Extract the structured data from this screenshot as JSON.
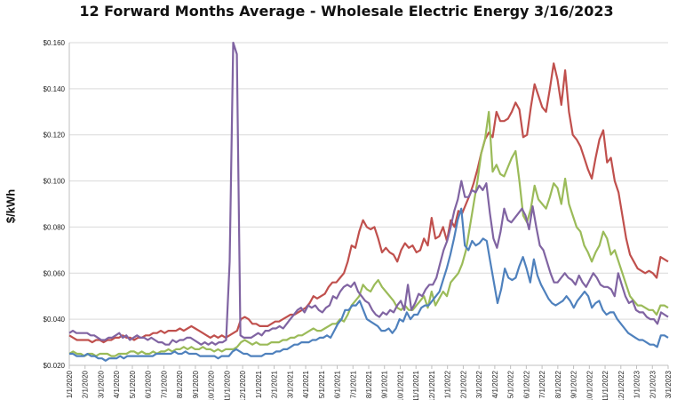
{
  "chart_data": {
    "type": "line",
    "title": "12 Forward Months Average - Wholesale Electric Energy 3/16/2023",
    "ylabel": "$/kWh",
    "xlabel": "",
    "ylim": [
      0.02,
      0.16
    ],
    "y_ticks": [
      "$0.020",
      "$0.040",
      "$0.060",
      "$0.080",
      "$0.100",
      "$0.120",
      "$0.140",
      "$0.160"
    ],
    "x_ticks": [
      "1/1/2020",
      "2/1/2020",
      "3/1/2020",
      "4/1/2020",
      "5/1/2020",
      "6/1/2020",
      "7/1/2020",
      "8/1/2020",
      "9/1/2020",
      "10/1/2020",
      "11/1/2020",
      "12/1/2020",
      "1/1/2021",
      "2/1/2021",
      "3/1/2021",
      "4/1/2021",
      "5/1/2021",
      "6/1/2021",
      "7/1/2021",
      "8/1/2021",
      "9/1/2021",
      "10/1/2021",
      "11/1/2021",
      "12/1/2021",
      "1/1/2022",
      "2/1/2022",
      "3/1/2022",
      "4/1/2022",
      "5/1/2022",
      "6/1/2022",
      "7/1/2022",
      "8/1/2022",
      "9/1/2022",
      "10/1/2022",
      "11/1/2022",
      "12/1/2022",
      "1/1/2023",
      "2/1/2023",
      "3/1/2023"
    ],
    "grid": true,
    "legend": "none",
    "series": [
      {
        "color": "#c0504d",
        "values": [
          0.033,
          0.032,
          0.031,
          0.031,
          0.031,
          0.031,
          0.03,
          0.031,
          0.031,
          0.03,
          0.031,
          0.031,
          0.032,
          0.032,
          0.033,
          0.032,
          0.032,
          0.031,
          0.032,
          0.032,
          0.033,
          0.033,
          0.034,
          0.034,
          0.035,
          0.034,
          0.035,
          0.035,
          0.035,
          0.036,
          0.035,
          0.036,
          0.037,
          0.036,
          0.035,
          0.034,
          0.033,
          0.032,
          0.033,
          0.032,
          0.033,
          0.032,
          0.033,
          0.034,
          0.035,
          0.04,
          0.041,
          0.04,
          0.038,
          0.038,
          0.037,
          0.037,
          0.037,
          0.038,
          0.039,
          0.039,
          0.04,
          0.041,
          0.042,
          0.042,
          0.043,
          0.044,
          0.045,
          0.047,
          0.05,
          0.049,
          0.05,
          0.051,
          0.054,
          0.056,
          0.056,
          0.058,
          0.06,
          0.065,
          0.072,
          0.071,
          0.078,
          0.083,
          0.08,
          0.079,
          0.08,
          0.075,
          0.069,
          0.071,
          0.069,
          0.068,
          0.065,
          0.07,
          0.073,
          0.071,
          0.072,
          0.069,
          0.07,
          0.075,
          0.072,
          0.084,
          0.075,
          0.076,
          0.08,
          0.074,
          0.083,
          0.08,
          0.087,
          0.086,
          0.09,
          0.094,
          0.099,
          0.105,
          0.112,
          0.118,
          0.121,
          0.119,
          0.13,
          0.126,
          0.126,
          0.127,
          0.13,
          0.134,
          0.131,
          0.119,
          0.12,
          0.132,
          0.142,
          0.137,
          0.132,
          0.13,
          0.14,
          0.151,
          0.144,
          0.133,
          0.148,
          0.13,
          0.12,
          0.118,
          0.115,
          0.11,
          0.105,
          0.101,
          0.11,
          0.118,
          0.122,
          0.108,
          0.11,
          0.1,
          0.095,
          0.085,
          0.075,
          0.068,
          0.065,
          0.062,
          0.061,
          0.06,
          0.061,
          0.06,
          0.058,
          0.067,
          0.066,
          0.065
        ]
      },
      {
        "color": "#9bbb59",
        "values": [
          0.025,
          0.026,
          0.025,
          0.025,
          0.024,
          0.025,
          0.025,
          0.024,
          0.025,
          0.025,
          0.025,
          0.024,
          0.024,
          0.025,
          0.025,
          0.025,
          0.026,
          0.026,
          0.025,
          0.026,
          0.025,
          0.025,
          0.026,
          0.025,
          0.026,
          0.026,
          0.027,
          0.026,
          0.027,
          0.027,
          0.028,
          0.027,
          0.028,
          0.027,
          0.027,
          0.028,
          0.027,
          0.027,
          0.026,
          0.027,
          0.026,
          0.027,
          0.027,
          0.027,
          0.028,
          0.03,
          0.031,
          0.03,
          0.029,
          0.03,
          0.029,
          0.029,
          0.029,
          0.03,
          0.03,
          0.03,
          0.031,
          0.031,
          0.032,
          0.032,
          0.033,
          0.033,
          0.034,
          0.035,
          0.036,
          0.035,
          0.035,
          0.036,
          0.037,
          0.038,
          0.038,
          0.04,
          0.039,
          0.042,
          0.046,
          0.048,
          0.05,
          0.055,
          0.053,
          0.052,
          0.055,
          0.057,
          0.054,
          0.052,
          0.05,
          0.048,
          0.045,
          0.044,
          0.046,
          0.044,
          0.044,
          0.046,
          0.048,
          0.05,
          0.045,
          0.052,
          0.046,
          0.049,
          0.052,
          0.05,
          0.056,
          0.058,
          0.06,
          0.064,
          0.07,
          0.08,
          0.09,
          0.1,
          0.112,
          0.118,
          0.13,
          0.104,
          0.107,
          0.103,
          0.102,
          0.106,
          0.11,
          0.113,
          0.1,
          0.085,
          0.082,
          0.088,
          0.098,
          0.092,
          0.09,
          0.088,
          0.093,
          0.099,
          0.097,
          0.09,
          0.101,
          0.09,
          0.085,
          0.08,
          0.078,
          0.072,
          0.069,
          0.065,
          0.069,
          0.072,
          0.078,
          0.075,
          0.068,
          0.07,
          0.065,
          0.06,
          0.055,
          0.05,
          0.048,
          0.046,
          0.046,
          0.045,
          0.044,
          0.044,
          0.042,
          0.046,
          0.046,
          0.045
        ]
      },
      {
        "color": "#8064a2",
        "values": [
          0.034,
          0.035,
          0.034,
          0.034,
          0.034,
          0.034,
          0.033,
          0.033,
          0.032,
          0.031,
          0.031,
          0.032,
          0.032,
          0.033,
          0.034,
          0.032,
          0.033,
          0.031,
          0.032,
          0.033,
          0.032,
          0.032,
          0.031,
          0.032,
          0.031,
          0.03,
          0.03,
          0.029,
          0.029,
          0.031,
          0.03,
          0.031,
          0.031,
          0.032,
          0.032,
          0.031,
          0.03,
          0.029,
          0.03,
          0.029,
          0.03,
          0.029,
          0.03,
          0.03,
          0.031,
          0.065,
          0.16,
          0.155,
          0.033,
          0.032,
          0.032,
          0.032,
          0.033,
          0.034,
          0.033,
          0.035,
          0.035,
          0.036,
          0.036,
          0.037,
          0.036,
          0.038,
          0.04,
          0.042,
          0.044,
          0.045,
          0.043,
          0.046,
          0.045,
          0.046,
          0.044,
          0.043,
          0.045,
          0.046,
          0.05,
          0.049,
          0.052,
          0.054,
          0.055,
          0.054,
          0.056,
          0.052,
          0.05,
          0.048,
          0.047,
          0.044,
          0.042,
          0.041,
          0.043,
          0.042,
          0.044,
          0.043,
          0.046,
          0.048,
          0.044,
          0.055,
          0.044,
          0.047,
          0.051,
          0.05,
          0.053,
          0.055,
          0.055,
          0.058,
          0.064,
          0.07,
          0.074,
          0.08,
          0.087,
          0.092,
          0.1,
          0.093,
          0.093,
          0.096,
          0.095,
          0.098,
          0.096,
          0.099,
          0.086,
          0.075,
          0.071,
          0.078,
          0.088,
          0.083,
          0.082,
          0.084,
          0.086,
          0.088,
          0.085,
          0.079,
          0.089,
          0.08,
          0.072,
          0.07,
          0.065,
          0.06,
          0.056,
          0.056,
          0.058,
          0.06,
          0.058,
          0.057,
          0.055,
          0.059,
          0.056,
          0.054,
          0.057,
          0.06,
          0.058,
          0.055,
          0.054,
          0.054,
          0.053,
          0.05,
          0.06,
          0.055,
          0.05,
          0.047,
          0.048,
          0.044,
          0.043,
          0.043,
          0.041,
          0.04,
          0.04,
          0.038,
          0.043,
          0.042,
          0.041
        ]
      },
      {
        "color": "#4f81bd",
        "values": [
          0.025,
          0.025,
          0.024,
          0.024,
          0.024,
          0.025,
          0.024,
          0.024,
          0.023,
          0.023,
          0.022,
          0.023,
          0.023,
          0.023,
          0.024,
          0.023,
          0.024,
          0.024,
          0.024,
          0.024,
          0.024,
          0.024,
          0.024,
          0.024,
          0.025,
          0.025,
          0.025,
          0.025,
          0.025,
          0.026,
          0.025,
          0.025,
          0.026,
          0.025,
          0.025,
          0.025,
          0.024,
          0.024,
          0.024,
          0.024,
          0.024,
          0.023,
          0.024,
          0.024,
          0.024,
          0.026,
          0.027,
          0.026,
          0.025,
          0.025,
          0.024,
          0.024,
          0.024,
          0.024,
          0.025,
          0.025,
          0.025,
          0.026,
          0.026,
          0.027,
          0.027,
          0.028,
          0.029,
          0.029,
          0.03,
          0.03,
          0.03,
          0.031,
          0.031,
          0.032,
          0.032,
          0.033,
          0.032,
          0.035,
          0.038,
          0.04,
          0.044,
          0.044,
          0.046,
          0.046,
          0.048,
          0.044,
          0.04,
          0.039,
          0.038,
          0.037,
          0.035,
          0.035,
          0.036,
          0.034,
          0.036,
          0.04,
          0.039,
          0.043,
          0.04,
          0.042,
          0.042,
          0.045,
          0.046,
          0.046,
          0.048,
          0.05,
          0.052,
          0.057,
          0.062,
          0.068,
          0.075,
          0.083,
          0.088,
          0.072,
          0.07,
          0.074,
          0.072,
          0.073,
          0.075,
          0.074,
          0.065,
          0.056,
          0.047,
          0.053,
          0.062,
          0.058,
          0.057,
          0.058,
          0.063,
          0.067,
          0.062,
          0.056,
          0.066,
          0.059,
          0.055,
          0.052,
          0.049,
          0.047,
          0.046,
          0.047,
          0.048,
          0.05,
          0.048,
          0.045,
          0.048,
          0.05,
          0.052,
          0.05,
          0.045,
          0.047,
          0.048,
          0.044,
          0.042,
          0.043,
          0.043,
          0.04,
          0.038,
          0.036,
          0.034,
          0.033,
          0.032,
          0.031,
          0.031,
          0.03,
          0.029,
          0.029,
          0.028,
          0.033,
          0.033,
          0.032
        ]
      }
    ]
  }
}
